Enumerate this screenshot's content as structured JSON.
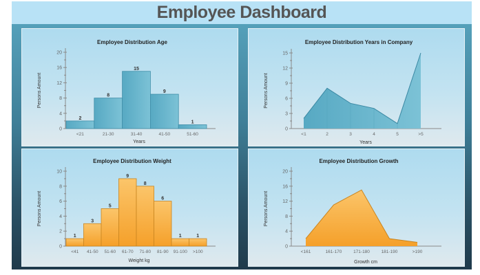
{
  "dashboard": {
    "title": "Employee Dashboard"
  },
  "colors": {
    "blue": "#63b3cc",
    "orange": "#f7a531",
    "axis": "#8a8a8a"
  },
  "chart_data": [
    {
      "type": "bar",
      "title": "Employee Distribution Age",
      "categories": [
        "<21",
        "21-30",
        "31-40",
        "41-50",
        "51-60"
      ],
      "values": [
        2,
        8,
        15,
        9,
        1
      ],
      "show_value_labels": true,
      "xlabel": "Years",
      "ylabel": "Persons Amount",
      "ylim": [
        0,
        20
      ],
      "yticks": [
        0,
        4,
        8,
        12,
        16,
        20
      ],
      "color": "blue"
    },
    {
      "type": "area",
      "title": "Employee Distribution Years in Company",
      "categories": [
        "<1",
        "2",
        "3",
        "4",
        "5",
        ">5"
      ],
      "values": [
        2,
        8,
        5,
        4,
        1,
        15
      ],
      "show_value_labels": false,
      "xlabel": "Years",
      "ylabel": "Persons Amount",
      "ylim": [
        0,
        15
      ],
      "yticks": [
        0,
        3,
        6,
        9,
        12,
        15
      ],
      "color": "blue"
    },
    {
      "type": "bar",
      "title": "Employee Distribution Weight",
      "categories": [
        "<41",
        "41-50",
        "51-60",
        "61-70",
        "71-80",
        "81-90",
        "91-100",
        ">100"
      ],
      "values": [
        1,
        3,
        5,
        9,
        8,
        6,
        1,
        1
      ],
      "show_value_labels": true,
      "xlabel": "Weight kg",
      "ylabel": "Persons Amount",
      "ylim": [
        0,
        10
      ],
      "yticks": [
        0,
        2,
        4,
        6,
        8,
        10
      ],
      "color": "orange"
    },
    {
      "type": "area",
      "title": "Employee Distribution Growth",
      "categories": [
        "<161",
        "161-170",
        "171-180",
        "181-190",
        ">190"
      ],
      "values": [
        2,
        11,
        15,
        2,
        1
      ],
      "show_value_labels": false,
      "xlabel": "Growth cm",
      "ylabel": "Persons Amount",
      "ylim": [
        0,
        20
      ],
      "yticks": [
        0,
        4,
        8,
        12,
        16,
        20
      ],
      "color": "orange"
    }
  ]
}
